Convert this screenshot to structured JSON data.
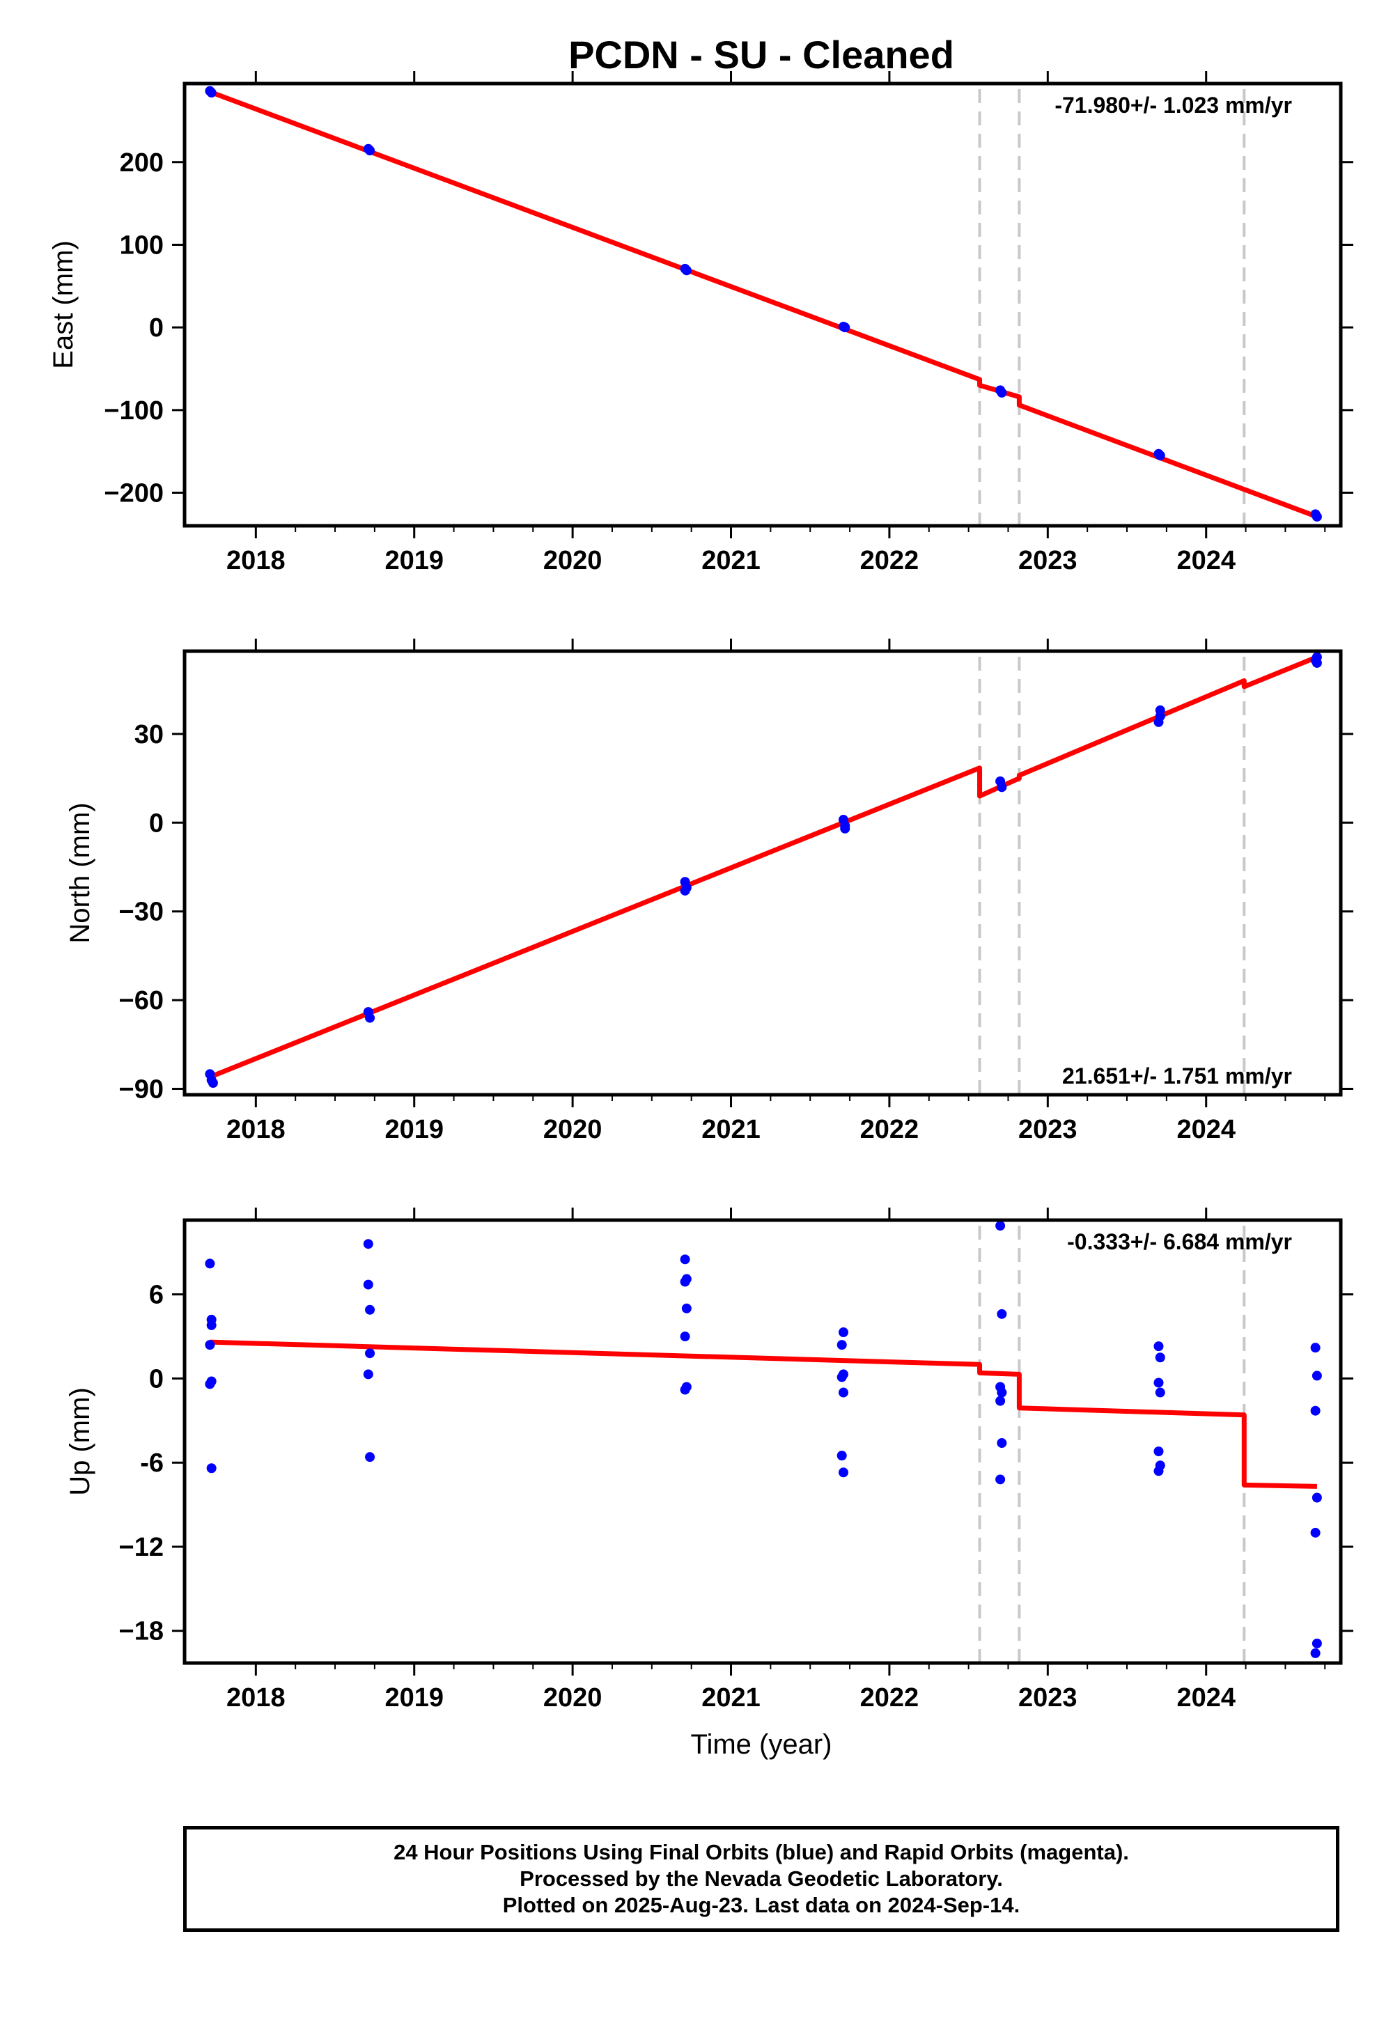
{
  "title": "PCDN  - SU - Cleaned",
  "xlabel": "Time (year)",
  "colors": {
    "trend": "#ff0000",
    "points": "#0000ff",
    "breaks": "#c8c8c8"
  },
  "chart_data": [
    {
      "type": "scatter",
      "ylabel": "East (mm)",
      "rate_text": "-71.980+/- 1.023 mm/yr",
      "rate_position": "top-right",
      "xlim": [
        2017.55,
        2024.85
      ],
      "ylim": [
        -240,
        295
      ],
      "xticks": [
        2018,
        2019,
        2020,
        2021,
        2022,
        2023,
        2024
      ],
      "yticks": [
        200,
        100,
        0,
        -100,
        -200
      ],
      "ytick_labels": [
        "200",
        "100",
        "0",
        "−100",
        "−200"
      ],
      "breaks": [
        2022.57,
        2022.82,
        2024.24
      ],
      "series": [
        {
          "kind": "points",
          "x": [
            2017.71,
            2017.72,
            2018.71,
            2018.72,
            2020.71,
            2020.72,
            2021.71,
            2021.72,
            2022.7,
            2022.71,
            2023.7,
            2023.71,
            2024.69,
            2024.7
          ],
          "y": [
            286,
            284,
            216,
            214,
            71,
            69,
            1,
            0,
            -76,
            -79,
            -153,
            -155,
            -226,
            -229
          ]
        },
        {
          "kind": "trend",
          "x": [
            2017.71,
            2022.57,
            2022.57,
            2022.82,
            2022.82,
            2024.7
          ],
          "y": [
            285,
            -63,
            -70,
            -84,
            -94,
            -229
          ]
        }
      ]
    },
    {
      "type": "scatter",
      "ylabel": "North (mm)",
      "rate_text": "21.651+/- 1.751 mm/yr",
      "rate_position": "bottom-right",
      "xlim": [
        2017.55,
        2024.85
      ],
      "ylim": [
        -92,
        58
      ],
      "xticks": [
        2018,
        2019,
        2020,
        2021,
        2022,
        2023,
        2024
      ],
      "yticks": [
        30,
        0,
        -30,
        -60,
        -90
      ],
      "ytick_labels": [
        "30",
        "0",
        "−30",
        "−60",
        "−90"
      ],
      "breaks": [
        2022.57,
        2022.82,
        2024.24
      ],
      "series": [
        {
          "kind": "points",
          "x": [
            2017.71,
            2017.72,
            2017.73,
            2018.71,
            2018.72,
            2020.71,
            2020.72,
            2020.71,
            2021.71,
            2021.72,
            2021.72,
            2022.7,
            2022.71,
            2023.7,
            2023.71,
            2023.71,
            2024.69,
            2024.7,
            2024.7
          ],
          "y": [
            -85,
            -87,
            -88,
            -64,
            -66,
            -20,
            -22,
            -23,
            1,
            -1,
            -2,
            14,
            12,
            34,
            36,
            38,
            55,
            56,
            54
          ],
          "rate": null
        },
        {
          "kind": "trend",
          "x": [
            2017.71,
            2022.57,
            2022.57,
            2022.82,
            2022.82,
            2024.24,
            2024.24,
            2024.7
          ],
          "y": [
            -86,
            18.5,
            9,
            15,
            16,
            48,
            46,
            56
          ]
        }
      ]
    },
    {
      "type": "scatter",
      "ylabel": "Up (mm)",
      "rate_text": "-0.333+/- 6.684 mm/yr",
      "rate_position": "top-right",
      "xlim": [
        2017.55,
        2024.85
      ],
      "ylim": [
        -20.3,
        11.3
      ],
      "xticks": [
        2018,
        2019,
        2020,
        2021,
        2022,
        2023,
        2024
      ],
      "yticks": [
        6,
        0,
        -6,
        -12,
        -18
      ],
      "ytick_labels": [
        "6",
        "0",
        "-6",
        "−12",
        "−18"
      ],
      "breaks": [
        2022.57,
        2022.82,
        2024.24
      ],
      "series": [
        {
          "kind": "points",
          "x": [
            2017.71,
            2017.72,
            2017.72,
            2017.71,
            2017.72,
            2017.71,
            2017.72,
            2018.71,
            2018.71,
            2018.72,
            2018.72,
            2018.71,
            2018.72,
            2020.71,
            2020.72,
            2020.71,
            2020.72,
            2020.71,
            2020.72,
            2020.71,
            2021.71,
            2021.7,
            2021.71,
            2021.7,
            2021.71,
            2021.7,
            2021.71,
            2022.7,
            2022.71,
            2022.7,
            2022.71,
            2022.7,
            2022.71,
            2022.7,
            2023.7,
            2023.71,
            2023.7,
            2023.71,
            2023.7,
            2023.71,
            2023.7,
            2024.69,
            2024.7,
            2024.69,
            2024.7,
            2024.69,
            2024.7,
            2024.69
          ],
          "y": [
            8.2,
            4.2,
            3.8,
            2.4,
            -0.2,
            -0.4,
            -6.4,
            9.6,
            6.7,
            4.9,
            1.8,
            0.3,
            -5.6,
            8.5,
            7.1,
            6.9,
            5.0,
            3.0,
            -0.6,
            -0.8,
            3.3,
            2.4,
            0.3,
            0.1,
            -1.0,
            -5.5,
            -6.7,
            10.9,
            4.6,
            -0.6,
            -1.0,
            -1.6,
            -4.6,
            -7.2,
            2.3,
            1.5,
            -0.3,
            -1.0,
            -5.2,
            -6.2,
            -6.6,
            2.2,
            0.2,
            -2.3,
            -8.5,
            -11.0,
            -18.9,
            -19.6
          ]
        },
        {
          "kind": "trend",
          "x": [
            2017.71,
            2022.57,
            2022.57,
            2022.82,
            2022.82,
            2024.24,
            2024.24,
            2024.7
          ],
          "y": [
            2.6,
            1.0,
            0.4,
            0.3,
            -2.1,
            -2.6,
            -7.6,
            -7.7
          ]
        }
      ]
    }
  ],
  "footer": {
    "line1": "24 Hour Positions Using Final Orbits (blue) and Rapid Orbits (magenta).",
    "line2": "Processed by the Nevada Geodetic Laboratory.",
    "line3": "Plotted on 2025-Aug-23. Last data on 2024-Sep-14."
  }
}
